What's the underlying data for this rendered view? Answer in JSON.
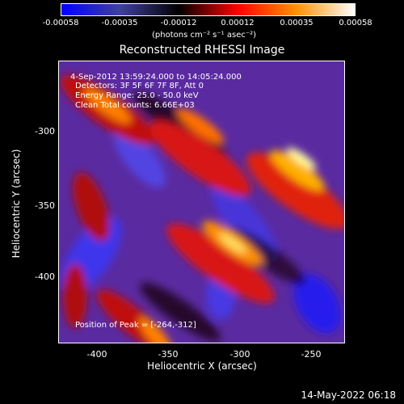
{
  "colorbar": {
    "ticks": [
      "-0.00058",
      "-0.00035",
      "-0.00012",
      "0.00012",
      "0.00035",
      "0.00058"
    ],
    "unit": "(photons cm⁻² s⁻¹ asec⁻²)",
    "colors": [
      "#0000ff",
      "#4040a0",
      "#000000",
      "#ff0000",
      "#ff9000",
      "#ffffff"
    ]
  },
  "title": "Reconstructed RHESSI Image",
  "info": {
    "time_range": "4-Sep-2012 13:59:24.000 to 14:05:24.000",
    "detectors": "Detectors: 3F 5F 6F 7F 8F, Att 0",
    "energy": "Energy Range: 25.0 - 50.0 keV",
    "clean": "Clean     Total counts: 6.66E+03",
    "peak": "Position of Peak = [-264,-312]"
  },
  "axes": {
    "xlabel": "Heliocentric X (arcsec)",
    "ylabel": "Heliocentric Y (arcsec)",
    "xticks": [
      "-400",
      "-350",
      "-300",
      "-250"
    ],
    "yticks": [
      "-300",
      "-350",
      "-400"
    ]
  },
  "footer": "14-May-2022 06:18"
}
